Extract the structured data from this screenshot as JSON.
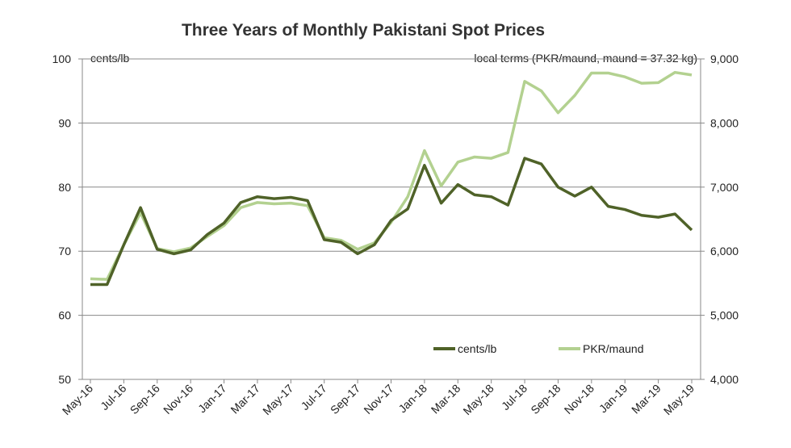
{
  "chart_data": {
    "type": "line",
    "title": "Three Years of Monthly Pakistani Spot Prices",
    "ylabel_left": "cents/lb",
    "ylabel_right": "local terms (PKR/maund, maund = 37.32 kg)",
    "ylim_left": [
      50,
      100
    ],
    "ylim_right": [
      4000,
      9000
    ],
    "yticks_left": [
      "50",
      "60",
      "70",
      "80",
      "90",
      "100"
    ],
    "yticks_right": [
      "4,000",
      "5,000",
      "6,000",
      "7,000",
      "8,000",
      "9,000"
    ],
    "grid": true,
    "legend_position": "bottom-right",
    "x": [
      "May-16",
      "Jun-16",
      "Jul-16",
      "Aug-16",
      "Sep-16",
      "Oct-16",
      "Nov-16",
      "Dec-16",
      "Jan-17",
      "Feb-17",
      "Mar-17",
      "Apr-17",
      "May-17",
      "Jun-17",
      "Jul-17",
      "Aug-17",
      "Sep-17",
      "Oct-17",
      "Nov-17",
      "Dec-17",
      "Jan-18",
      "Feb-18",
      "Mar-18",
      "Apr-18",
      "May-18",
      "Jun-18",
      "Jul-18",
      "Aug-18",
      "Sep-18",
      "Oct-18",
      "Nov-18",
      "Dec-18",
      "Jan-19",
      "Feb-19",
      "Mar-19",
      "Apr-19",
      "May-19"
    ],
    "xtick_labels": [
      "May-16",
      "Jul-16",
      "Sep-16",
      "Nov-16",
      "Jan-17",
      "Mar-17",
      "May-17",
      "Jul-17",
      "Sep-17",
      "Nov-17",
      "Jan-18",
      "Mar-18",
      "May-18",
      "Jul-18",
      "Sep-18",
      "Nov-18",
      "Jan-19",
      "Mar-19",
      "May-19"
    ],
    "series": [
      {
        "name": "cents/lb",
        "axis": "left",
        "color": "#4f6228",
        "values": [
          64.8,
          64.8,
          71,
          76.8,
          70.3,
          69.6,
          70.2,
          72.6,
          74.4,
          77.6,
          78.5,
          78.2,
          78.4,
          77.9,
          71.8,
          71.4,
          69.6,
          71,
          74.8,
          76.6,
          83.4,
          77.5,
          80.4,
          78.8,
          78.5,
          77.2,
          84.5,
          83.6,
          80,
          78.6,
          80,
          77,
          76.5,
          75.6,
          75.3,
          75.8,
          73.3
        ]
      },
      {
        "name": "PKR/maund",
        "axis": "right",
        "color": "#b3d190",
        "values": [
          5570,
          5560,
          6100,
          6600,
          6040,
          5990,
          6050,
          6230,
          6400,
          6680,
          6760,
          6740,
          6750,
          6710,
          6210,
          6170,
          6030,
          6130,
          6450,
          6850,
          7570,
          7020,
          7390,
          7470,
          7450,
          7540,
          8650,
          8500,
          8160,
          8430,
          8780,
          8780,
          8720,
          8620,
          8630,
          8790,
          8750
        ]
      }
    ]
  }
}
